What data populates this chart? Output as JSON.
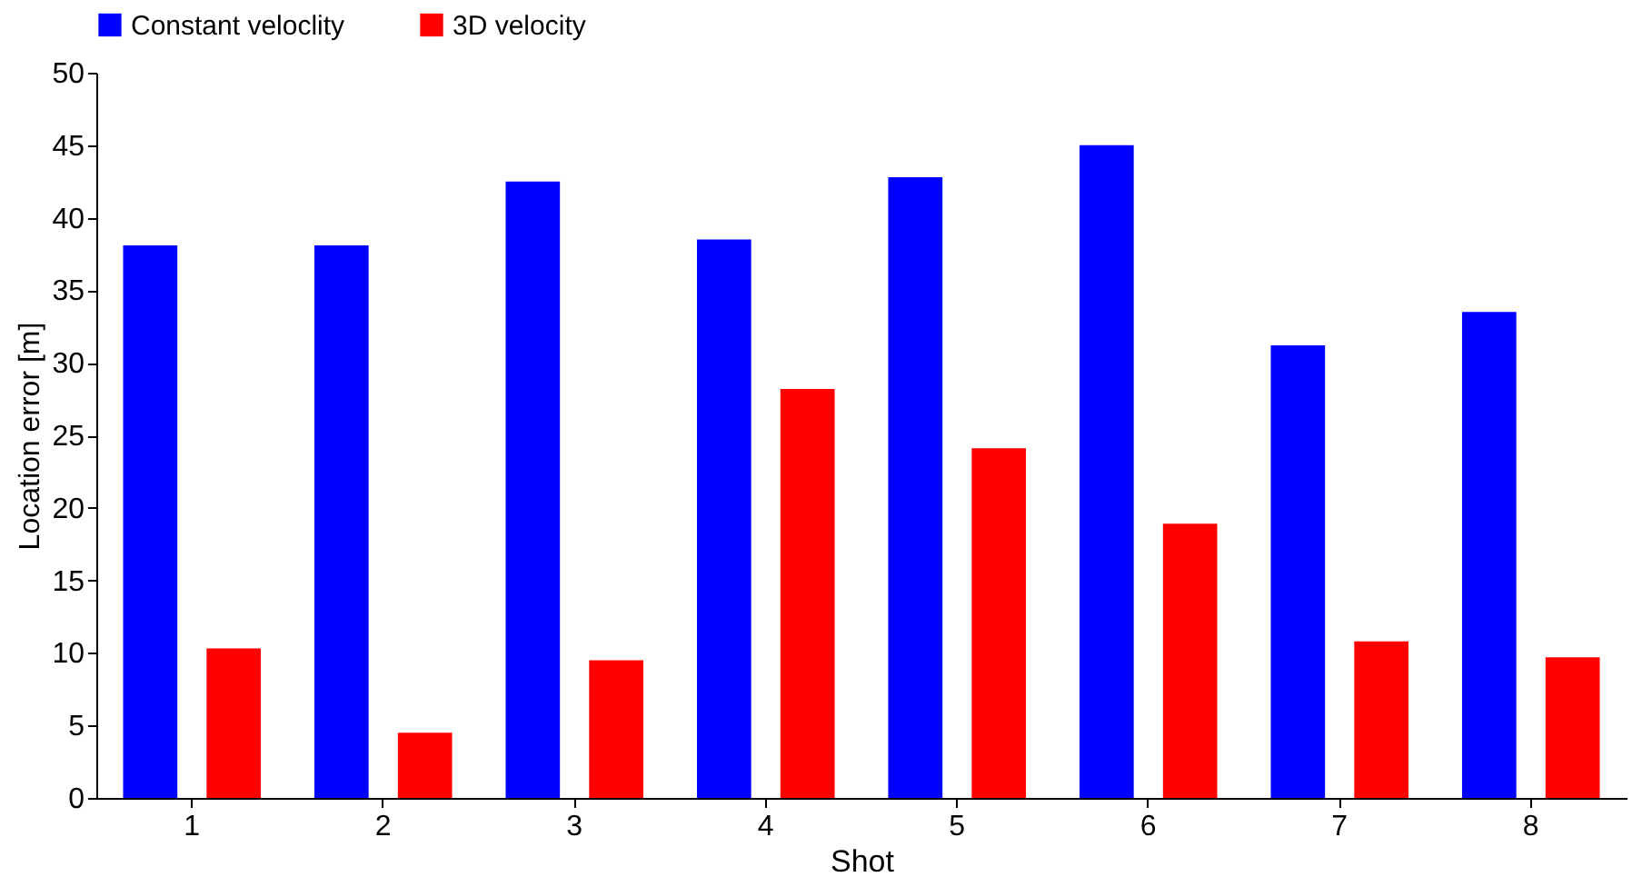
{
  "chart_data": {
    "type": "bar",
    "xlabel": "Shot",
    "ylabel": "Location error  [m]",
    "categories": [
      "1",
      "2",
      "3",
      "4",
      "5",
      "6",
      "7",
      "8"
    ],
    "series": [
      {
        "name": "Constant veloclity",
        "color": "#0000ff",
        "values": [
          38.1,
          38.1,
          42.5,
          38.5,
          42.8,
          45.0,
          31.2,
          33.5
        ]
      },
      {
        "name": "3D velocity",
        "color": "#ff0000",
        "values": [
          10.3,
          4.5,
          9.5,
          28.2,
          24.1,
          18.9,
          10.8,
          9.7
        ]
      }
    ],
    "ylim": [
      0,
      50
    ],
    "yticks": [
      0,
      5,
      10,
      15,
      20,
      25,
      30,
      35,
      40,
      45,
      50
    ],
    "grid": false,
    "legend": "top"
  }
}
